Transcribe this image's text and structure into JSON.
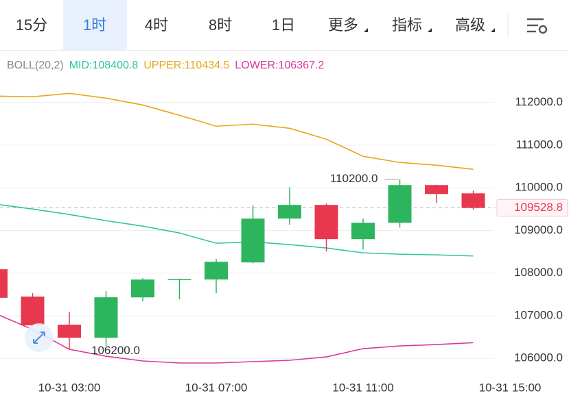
{
  "tabs": [
    "15分",
    "1时",
    "4时",
    "8时",
    "1日",
    "更多",
    "指标",
    "高级"
  ],
  "active_tab": 1,
  "chart_data": {
    "type": "candlestick",
    "indicator": "BOLL(20,2)",
    "categories": [
      null,
      null,
      "10-31 03:00",
      null,
      null,
      null,
      "10-31 07:00",
      null,
      null,
      null,
      "10-31 11:00",
      null,
      null,
      null,
      "10-31 15:00"
    ],
    "open": [
      108090,
      107450,
      106790,
      106485,
      107430,
      107840,
      107850,
      108250,
      109278,
      109599,
      108796,
      109181,
      110064,
      109870,
      null
    ],
    "high": [
      108150,
      107528,
      107095,
      107576,
      107880,
      107870,
      108330,
      109583,
      110016,
      109631,
      109278,
      110200,
      110070,
      109936,
      null
    ],
    "low": [
      107400,
      106750,
      106200,
      106292,
      107335,
      107384,
      107528,
      108230,
      109133,
      108507,
      108555,
      109069,
      109647,
      109486,
      null
    ],
    "close": [
      107420,
      106774,
      106485,
      107432,
      107849,
      107860,
      108266,
      109278,
      109599,
      108796,
      109181,
      110064,
      109855,
      109528.8,
      null
    ],
    "up_color": "#2db55d",
    "down_color": "#e8384f",
    "series": [
      {
        "label": "MID:108400.8",
        "color": "#2ec4a0",
        "values": [
          109615,
          109502,
          109374,
          109230,
          109101,
          108941,
          108700,
          108732,
          108668,
          108588,
          108475,
          108443,
          108427,
          108400.8,
          null
        ]
      },
      {
        "label": "UPPER:110434.5",
        "color": "#e6a817",
        "values": [
          112151,
          112135,
          112215,
          112103,
          111942,
          111701,
          111445,
          111493,
          111396,
          111140,
          110739,
          110594,
          110530,
          110434.5,
          null
        ]
      },
      {
        "label": "LOWER:106367.2",
        "color": "#d9389c",
        "values": [
          107047,
          106677,
          106212,
          106051,
          105939,
          105891,
          105891,
          105923,
          105955,
          106035,
          106228,
          106292,
          106324,
          106367.2,
          null
        ]
      }
    ],
    "high_label": "110200.0",
    "low_label": "106200.0",
    "last_price": {
      "value": 109528.8,
      "label": "109528.8"
    },
    "ylim": [
      105650,
      113200
    ],
    "yticks": [
      {
        "value": 106000,
        "label": "106000.0"
      },
      {
        "value": 107000,
        "label": "107000.0"
      },
      {
        "value": 108000,
        "label": "108000.0"
      },
      {
        "value": 109000,
        "label": "109000.0"
      },
      {
        "value": 110000,
        "label": "110000.0"
      },
      {
        "value": 111000,
        "label": "111000.0"
      },
      {
        "value": 112000,
        "label": "112000.0"
      }
    ],
    "grid": true
  }
}
